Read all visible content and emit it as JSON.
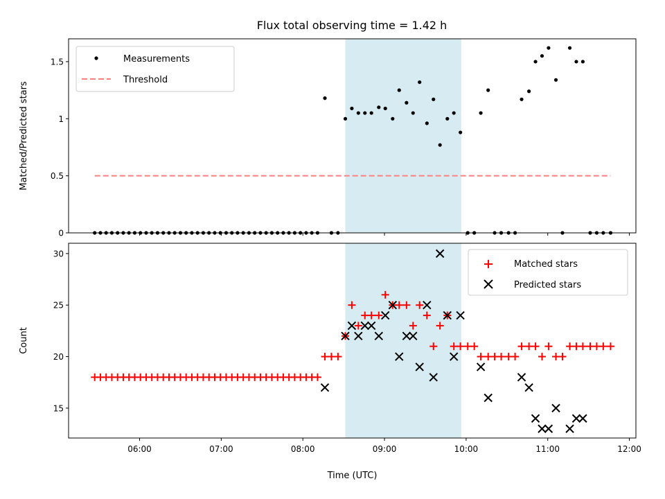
{
  "figure": {
    "title": "Flux total observing time = 1.42 h"
  },
  "colors": {
    "measurement": "#000000",
    "threshold": "#ff7f7f",
    "span": "#add8e6",
    "matched": "#ff0000",
    "predicted": "#000000"
  },
  "chart_data": [
    {
      "type": "scatter",
      "ylabel": "Matched/Predicted stars",
      "xlabel": "",
      "x_unit": "hours UTC",
      "xlim": [
        5.13,
        12.08
      ],
      "ylim": [
        0.0,
        1.7
      ],
      "yticks": [
        0.0,
        0.5,
        1.0,
        1.5
      ],
      "xticks": [
        6,
        7,
        8,
        9,
        10,
        11,
        12
      ],
      "xtick_labels": [
        "06:00",
        "07:00",
        "08:00",
        "09:00",
        "10:00",
        "11:00",
        "12:00"
      ],
      "show_xtick_labels": false,
      "grid": false,
      "legend": {
        "placement": "upper-left",
        "entries": [
          "Measurements",
          "Threshold"
        ]
      },
      "highlight_span": [
        8.52,
        9.94
      ],
      "threshold": {
        "name": "Threshold",
        "y": 0.5,
        "x_start": 5.45,
        "x_end": 11.77
      },
      "series": [
        {
          "name": "Measurements",
          "marker": "dot",
          "points": [
            [
              5.45,
              0
            ],
            [
              5.52,
              0
            ],
            [
              5.59,
              0
            ],
            [
              5.66,
              0
            ],
            [
              5.73,
              0
            ],
            [
              5.8,
              0
            ],
            [
              5.87,
              0
            ],
            [
              5.94,
              0
            ],
            [
              6.01,
              0
            ],
            [
              6.08,
              0
            ],
            [
              6.15,
              0
            ],
            [
              6.22,
              0
            ],
            [
              6.29,
              0
            ],
            [
              6.36,
              0
            ],
            [
              6.43,
              0
            ],
            [
              6.5,
              0
            ],
            [
              6.57,
              0
            ],
            [
              6.64,
              0
            ],
            [
              6.71,
              0
            ],
            [
              6.78,
              0
            ],
            [
              6.85,
              0
            ],
            [
              6.92,
              0
            ],
            [
              6.99,
              0
            ],
            [
              7.06,
              0
            ],
            [
              7.13,
              0
            ],
            [
              7.2,
              0
            ],
            [
              7.27,
              0
            ],
            [
              7.34,
              0
            ],
            [
              7.41,
              0
            ],
            [
              7.48,
              0
            ],
            [
              7.55,
              0
            ],
            [
              7.62,
              0
            ],
            [
              7.69,
              0
            ],
            [
              7.76,
              0
            ],
            [
              7.83,
              0
            ],
            [
              7.9,
              0
            ],
            [
              7.97,
              0
            ],
            [
              8.04,
              0
            ],
            [
              8.11,
              0
            ],
            [
              8.18,
              0
            ],
            [
              8.27,
              1.18
            ],
            [
              8.35,
              0
            ],
            [
              8.43,
              0
            ],
            [
              8.52,
              1.0
            ],
            [
              8.6,
              1.09
            ],
            [
              8.68,
              1.05
            ],
            [
              8.76,
              1.05
            ],
            [
              8.84,
              1.05
            ],
            [
              8.93,
              1.1
            ],
            [
              9.01,
              1.09
            ],
            [
              9.1,
              1.0
            ],
            [
              9.18,
              1.25
            ],
            [
              9.27,
              1.14
            ],
            [
              9.35,
              1.05
            ],
            [
              9.43,
              1.32
            ],
            [
              9.52,
              0.96
            ],
            [
              9.6,
              1.17
            ],
            [
              9.68,
              0.77
            ],
            [
              9.77,
              1.0
            ],
            [
              9.85,
              1.05
            ],
            [
              9.93,
              0.88
            ],
            [
              10.02,
              0
            ],
            [
              10.1,
              0
            ],
            [
              10.18,
              1.05
            ],
            [
              10.27,
              1.25
            ],
            [
              10.35,
              0
            ],
            [
              10.43,
              0
            ],
            [
              10.52,
              0
            ],
            [
              10.6,
              0
            ],
            [
              10.68,
              1.17
            ],
            [
              10.77,
              1.24
            ],
            [
              10.85,
              1.5
            ],
            [
              10.93,
              1.55
            ],
            [
              11.01,
              1.62
            ],
            [
              11.1,
              1.34
            ],
            [
              11.18,
              0
            ],
            [
              11.27,
              1.62
            ],
            [
              11.35,
              1.5
            ],
            [
              11.43,
              1.5
            ],
            [
              11.52,
              0
            ],
            [
              11.6,
              0
            ],
            [
              11.68,
              0
            ],
            [
              11.77,
              0
            ]
          ]
        }
      ]
    },
    {
      "type": "scatter",
      "ylabel": "Count",
      "xlabel": "Time (UTC)",
      "x_unit": "hours UTC",
      "xlim": [
        5.13,
        12.08
      ],
      "ylim": [
        12.1,
        31.0
      ],
      "yticks": [
        15,
        20,
        25,
        30
      ],
      "xticks": [
        6,
        7,
        8,
        9,
        10,
        11,
        12
      ],
      "xtick_labels": [
        "06:00",
        "07:00",
        "08:00",
        "09:00",
        "10:00",
        "11:00",
        "12:00"
      ],
      "show_xtick_labels": true,
      "grid": false,
      "legend": {
        "placement": "upper-right",
        "entries": [
          "Matched stars",
          "Predicted stars"
        ]
      },
      "highlight_span": [
        8.52,
        9.94
      ],
      "series": [
        {
          "name": "Matched stars",
          "marker": "plus",
          "points": [
            [
              5.45,
              18
            ],
            [
              5.52,
              18
            ],
            [
              5.59,
              18
            ],
            [
              5.66,
              18
            ],
            [
              5.73,
              18
            ],
            [
              5.8,
              18
            ],
            [
              5.87,
              18
            ],
            [
              5.94,
              18
            ],
            [
              6.01,
              18
            ],
            [
              6.08,
              18
            ],
            [
              6.15,
              18
            ],
            [
              6.22,
              18
            ],
            [
              6.29,
              18
            ],
            [
              6.36,
              18
            ],
            [
              6.43,
              18
            ],
            [
              6.5,
              18
            ],
            [
              6.57,
              18
            ],
            [
              6.64,
              18
            ],
            [
              6.71,
              18
            ],
            [
              6.78,
              18
            ],
            [
              6.85,
              18
            ],
            [
              6.92,
              18
            ],
            [
              6.99,
              18
            ],
            [
              7.06,
              18
            ],
            [
              7.13,
              18
            ],
            [
              7.2,
              18
            ],
            [
              7.27,
              18
            ],
            [
              7.34,
              18
            ],
            [
              7.41,
              18
            ],
            [
              7.48,
              18
            ],
            [
              7.55,
              18
            ],
            [
              7.62,
              18
            ],
            [
              7.69,
              18
            ],
            [
              7.76,
              18
            ],
            [
              7.83,
              18
            ],
            [
              7.9,
              18
            ],
            [
              7.97,
              18
            ],
            [
              8.04,
              18
            ],
            [
              8.11,
              18
            ],
            [
              8.18,
              18
            ],
            [
              8.27,
              20
            ],
            [
              8.35,
              20
            ],
            [
              8.43,
              20
            ],
            [
              8.52,
              22
            ],
            [
              8.6,
              25
            ],
            [
              8.68,
              23
            ],
            [
              8.76,
              24
            ],
            [
              8.84,
              24
            ],
            [
              8.93,
              24
            ],
            [
              9.01,
              26
            ],
            [
              9.1,
              25
            ],
            [
              9.18,
              25
            ],
            [
              9.27,
              25
            ],
            [
              9.35,
              23
            ],
            [
              9.43,
              25
            ],
            [
              9.52,
              24
            ],
            [
              9.6,
              21
            ],
            [
              9.68,
              23
            ],
            [
              9.77,
              24
            ],
            [
              9.85,
              21
            ],
            [
              9.93,
              21
            ],
            [
              10.02,
              21
            ],
            [
              10.1,
              21
            ],
            [
              10.18,
              20
            ],
            [
              10.27,
              20
            ],
            [
              10.35,
              20
            ],
            [
              10.43,
              20
            ],
            [
              10.52,
              20
            ],
            [
              10.6,
              20
            ],
            [
              10.68,
              21
            ],
            [
              10.77,
              21
            ],
            [
              10.85,
              21
            ],
            [
              10.93,
              20
            ],
            [
              11.01,
              21
            ],
            [
              11.1,
              20
            ],
            [
              11.18,
              20
            ],
            [
              11.27,
              21
            ],
            [
              11.35,
              21
            ],
            [
              11.43,
              21
            ],
            [
              11.52,
              21
            ],
            [
              11.6,
              21
            ],
            [
              11.68,
              21
            ],
            [
              11.77,
              21
            ]
          ]
        },
        {
          "name": "Predicted stars",
          "marker": "x",
          "points": [
            [
              8.27,
              17
            ],
            [
              8.52,
              22
            ],
            [
              8.6,
              23
            ],
            [
              8.68,
              22
            ],
            [
              8.76,
              23
            ],
            [
              8.84,
              23
            ],
            [
              8.93,
              22
            ],
            [
              9.01,
              24
            ],
            [
              9.1,
              25
            ],
            [
              9.18,
              20
            ],
            [
              9.27,
              22
            ],
            [
              9.35,
              22
            ],
            [
              9.43,
              19
            ],
            [
              9.52,
              25
            ],
            [
              9.6,
              18
            ],
            [
              9.68,
              30
            ],
            [
              9.77,
              24
            ],
            [
              9.85,
              20
            ],
            [
              9.93,
              24
            ],
            [
              10.18,
              19
            ],
            [
              10.27,
              16
            ],
            [
              10.68,
              18
            ],
            [
              10.77,
              17
            ],
            [
              10.85,
              14
            ],
            [
              10.93,
              13
            ],
            [
              11.01,
              13
            ],
            [
              11.1,
              15
            ],
            [
              11.27,
              13
            ],
            [
              11.35,
              14
            ],
            [
              11.43,
              14
            ]
          ]
        }
      ]
    }
  ]
}
